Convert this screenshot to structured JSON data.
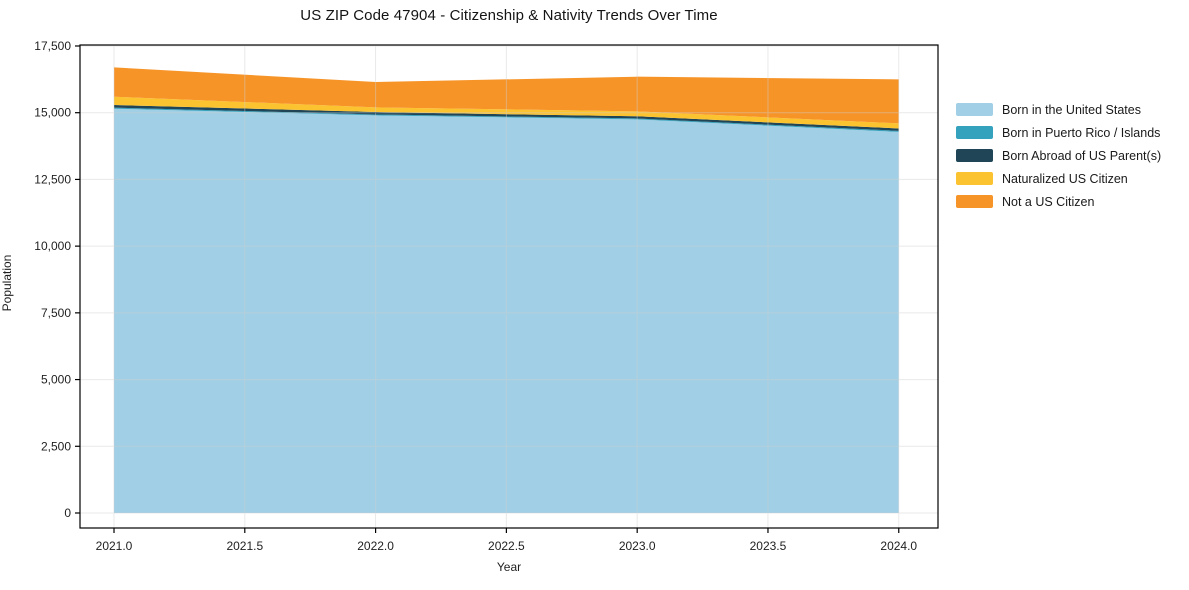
{
  "title": "US ZIP Code 47904 - Citizenship & Nativity Trends Over Time",
  "chart_data": {
    "type": "area",
    "stacked": true,
    "title": "US ZIP Code 47904 - Citizenship & Nativity Trends Over Time",
    "xlabel": "Year",
    "ylabel": "Population",
    "x": [
      2021,
      2022,
      2023,
      2024
    ],
    "series": [
      {
        "name": "Born in the United States",
        "color": "#a1cfe5",
        "values": [
          15150,
          14900,
          14750,
          14280
        ]
      },
      {
        "name": "Born in Puerto Rico / Islands",
        "color": "#35a2bd",
        "values": [
          40,
          35,
          35,
          40
        ]
      },
      {
        "name": "Born Abroad of US Parent(s)",
        "color": "#1f4557",
        "values": [
          100,
          90,
          80,
          90
        ]
      },
      {
        "name": "Naturalized US Citizen",
        "color": "#fcc330",
        "values": [
          310,
          175,
          185,
          190
        ]
      },
      {
        "name": "Not a US Citizen",
        "color": "#f79428",
        "values": [
          1100,
          950,
          1300,
          1650
        ]
      }
    ],
    "stack_totals": [
      16700,
      16150,
      16350,
      16250
    ],
    "xticks": [
      2021.0,
      2021.5,
      2022.0,
      2022.5,
      2023.0,
      2023.5,
      2024.0
    ],
    "yticks": [
      0,
      2500,
      5000,
      7500,
      10000,
      12500,
      15000,
      17500
    ],
    "xlim": [
      2020.87,
      2024.15
    ],
    "ylim": [
      -562,
      17537
    ],
    "grid": true,
    "legend_position": "right",
    "colors": {
      "grid": "#cfcfcf",
      "spine": "#000000",
      "tick_label": "#1f1f1f"
    }
  }
}
